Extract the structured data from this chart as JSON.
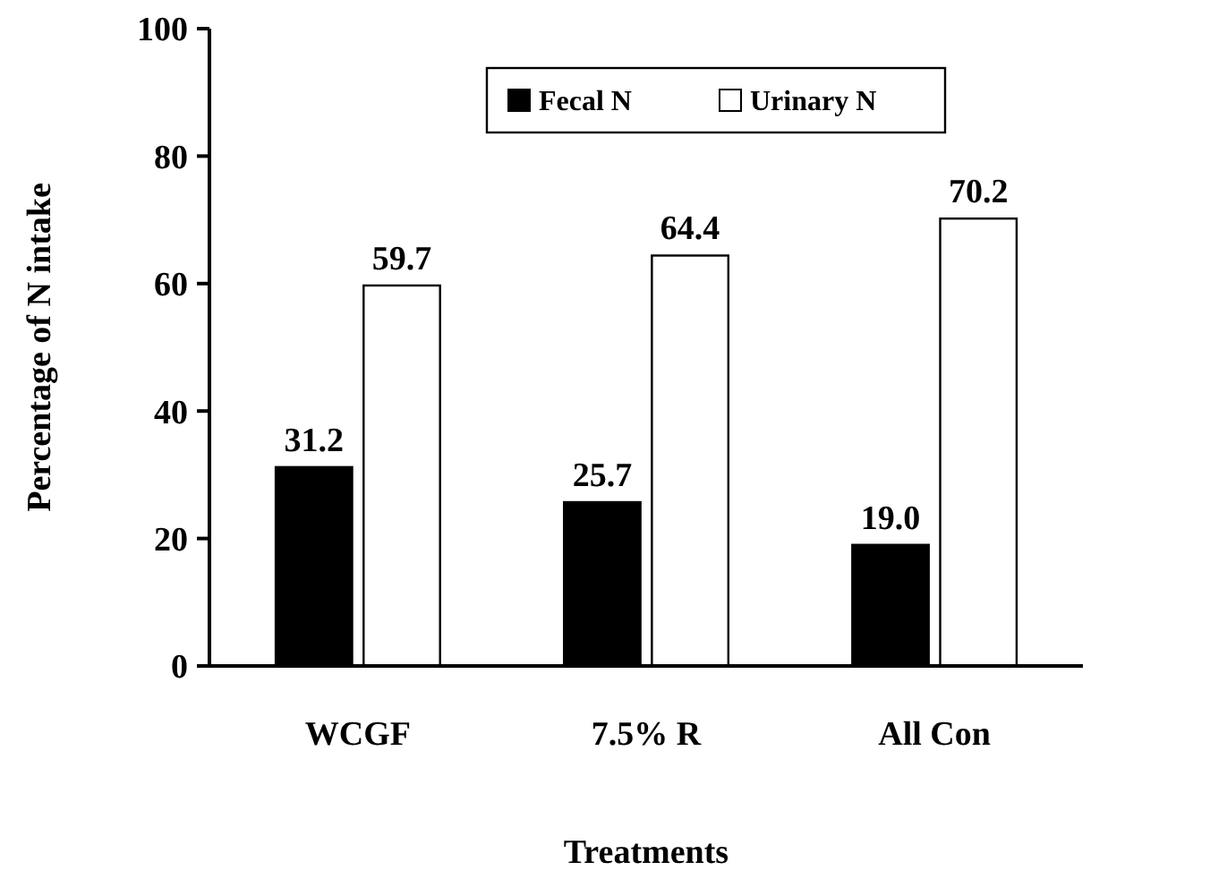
{
  "chart_data": {
    "type": "bar",
    "xlabel": "Treatments",
    "ylabel": "Percentage of N intake",
    "categories": [
      "WCGF",
      "7.5% R",
      "All Con"
    ],
    "series": [
      {
        "name": "Fecal N",
        "color": "#000000",
        "values": [
          31.2,
          25.7,
          19.0
        ],
        "value_labels": [
          "31.2",
          "25.7",
          "19.0"
        ]
      },
      {
        "name": "Urinary N",
        "color": "#ffffff",
        "values": [
          59.7,
          64.4,
          70.2
        ],
        "value_labels": [
          "59.7",
          "64.4",
          "70.2"
        ]
      }
    ],
    "ylim": [
      0,
      100
    ],
    "yticks": [
      0,
      20,
      40,
      60,
      80,
      100
    ],
    "legend": "top",
    "grid": false
  }
}
